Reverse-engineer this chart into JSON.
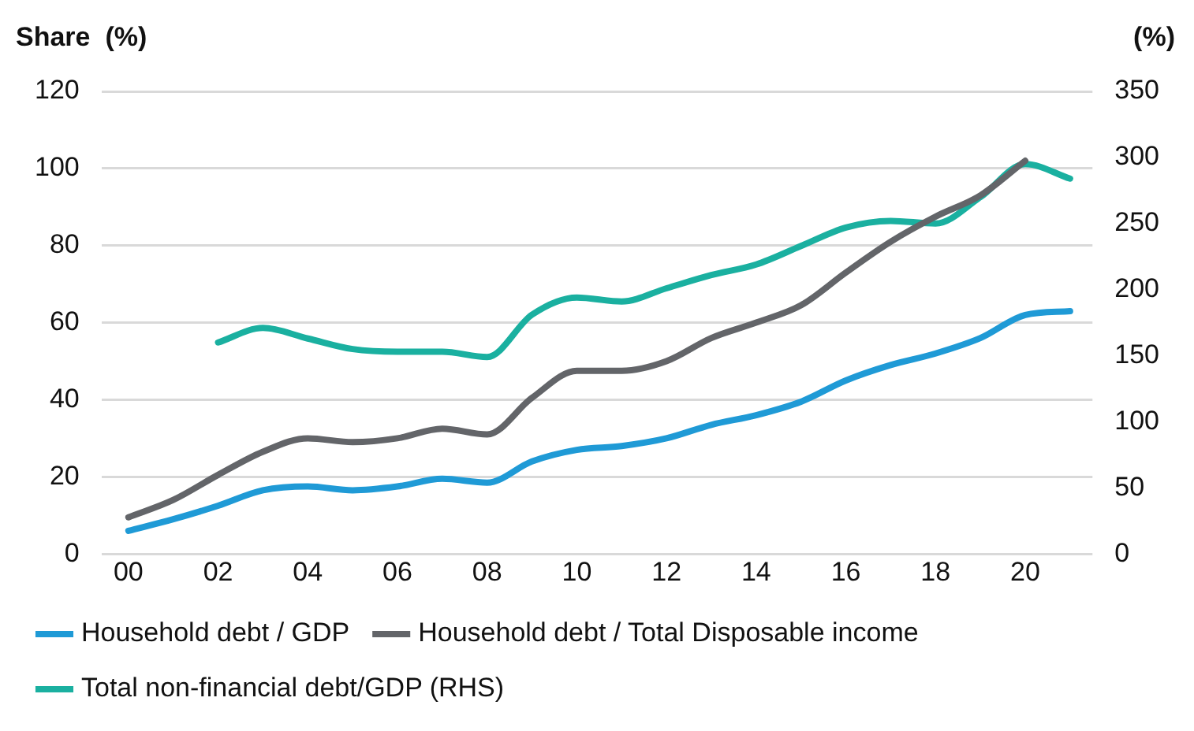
{
  "chart_data": {
    "type": "line",
    "ylabel": "Share  (%)",
    "y2label": "(%)",
    "x": [
      2000,
      2001,
      2002,
      2003,
      2004,
      2005,
      2006,
      2007,
      2008,
      2009,
      2010,
      2011,
      2012,
      2013,
      2014,
      2015,
      2016,
      2017,
      2018,
      2019,
      2020,
      2021
    ],
    "series": [
      {
        "name": "Household debt / GDP",
        "color": "#1f9ad6",
        "values": [
          6,
          9,
          12.5,
          16.5,
          17.5,
          16.5,
          17.5,
          19.5,
          18.5,
          24,
          27,
          28,
          30,
          33.5,
          36,
          39.5,
          45,
          49,
          52,
          56,
          62,
          63
        ]
      },
      {
        "name": "Household debt / Total Disposable income",
        "color": "#636569",
        "values": [
          9.5,
          14,
          20.5,
          26.5,
          30,
          29,
          30,
          32.5,
          31,
          40.5,
          47.5,
          47.5,
          50,
          56,
          60,
          64.5,
          73,
          81,
          87.5,
          93,
          102,
          null
        ]
      },
      {
        "name": "Total non-financial debt/GDP (RHS)",
        "color": "#1ab0a0",
        "axis": "y2",
        "values": [
          null,
          null,
          160,
          171,
          163,
          155,
          153,
          153,
          149,
          181,
          194,
          191,
          201,
          211,
          219,
          233,
          247,
          252,
          250,
          270,
          295,
          284
        ]
      }
    ],
    "xlim": [
      1999.4,
      2021.5
    ],
    "xticks": [
      {
        "value": 2000,
        "label": "00"
      },
      {
        "value": 2002,
        "label": "02"
      },
      {
        "value": 2004,
        "label": "04"
      },
      {
        "value": 2006,
        "label": "06"
      },
      {
        "value": 2008,
        "label": "08"
      },
      {
        "value": 2010,
        "label": "10"
      },
      {
        "value": 2012,
        "label": "12"
      },
      {
        "value": 2014,
        "label": "14"
      },
      {
        "value": 2016,
        "label": "16"
      },
      {
        "value": 2018,
        "label": "18"
      },
      {
        "value": 2020,
        "label": "20"
      }
    ],
    "ylim": [
      0,
      120
    ],
    "yticks": [
      0,
      20,
      40,
      60,
      80,
      100,
      120
    ],
    "y2lim": [
      0,
      350
    ],
    "y2ticks": [
      0,
      50,
      100,
      150,
      200,
      250,
      300,
      350
    ],
    "grid": "y",
    "legend": "bottom",
    "marker": "none",
    "line_style": "solid"
  }
}
